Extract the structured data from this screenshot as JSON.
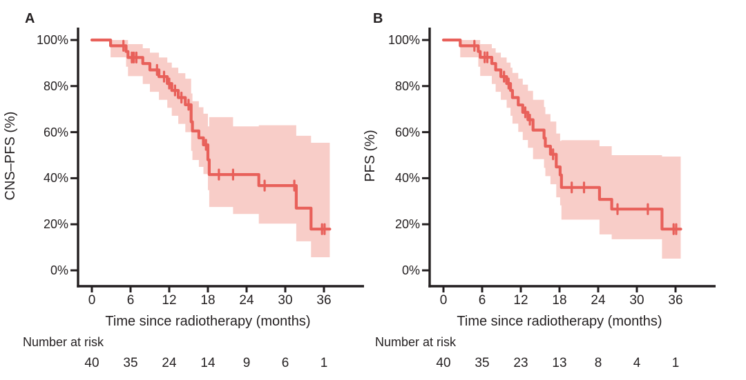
{
  "chart_data": [
    {
      "type": "line",
      "subtype": "kaplan_meier_step_with_ci_band",
      "panel_label": "A",
      "ylabel": "CNS–PFS (%)",
      "xlabel": "Time since radiotherapy (months)",
      "x_ticks": [
        0,
        6,
        12,
        18,
        24,
        30,
        36
      ],
      "y_ticks": [
        {
          "value": 100,
          "label": "100%"
        },
        {
          "value": 80,
          "label": "80%"
        },
        {
          "value": 60,
          "label": "60%"
        },
        {
          "value": 40,
          "label": "40%"
        },
        {
          "value": 20,
          "label": "20%"
        },
        {
          "value": 0,
          "label": "0%"
        }
      ],
      "xlim": [
        0,
        38
      ],
      "ylim": [
        0,
        100
      ],
      "grid": false,
      "legend": false,
      "line_color": "#e8605a",
      "band_color": "#f8cdc8",
      "axis_color": "#231f20",
      "end_time": 36.9,
      "steps": [
        {
          "t": 0,
          "s": 100,
          "u": 100,
          "l": 100
        },
        {
          "t": 2.9,
          "s": 97.5,
          "u": 100,
          "l": 92.5
        },
        {
          "t": 5.3,
          "s": 95.0,
          "u": 100,
          "l": 88.4
        },
        {
          "t": 5.6,
          "s": 92.4,
          "u": 98.2,
          "l": 84.3
        },
        {
          "t": 7.9,
          "s": 89.8,
          "u": 96.4,
          "l": 80.9
        },
        {
          "t": 9.0,
          "s": 87.0,
          "u": 94.5,
          "l": 77.5
        },
        {
          "t": 10.4,
          "s": 84.1,
          "u": 92.4,
          "l": 74.0
        },
        {
          "t": 11.7,
          "s": 81.1,
          "u": 90.2,
          "l": 70.6
        },
        {
          "t": 12.4,
          "s": 78.1,
          "u": 88.0,
          "l": 67.1
        },
        {
          "t": 13.4,
          "s": 75.0,
          "u": 85.6,
          "l": 63.6
        },
        {
          "t": 14.5,
          "s": 71.9,
          "u": 83.2,
          "l": 60.0
        },
        {
          "t": 15.4,
          "s": 64.5,
          "u": 76.8,
          "l": 51.9
        },
        {
          "t": 15.6,
          "s": 60.5,
          "u": 73.4,
          "l": 47.9
        },
        {
          "t": 16.6,
          "s": 57.5,
          "u": 70.8,
          "l": 44.9
        },
        {
          "t": 17.3,
          "s": 54.5,
          "u": 68.0,
          "l": 41.8
        },
        {
          "t": 18.0,
          "s": 48.0,
          "u": 62.5,
          "l": 34.8
        },
        {
          "t": 18.2,
          "s": 41.6,
          "u": 66.5,
          "l": 27.5
        },
        {
          "t": 21.9,
          "s": 41.6,
          "u": 62.5,
          "l": 24.5
        },
        {
          "t": 25.9,
          "s": 36.8,
          "u": 63.0,
          "l": 20.3
        },
        {
          "t": 31.7,
          "s": 27.0,
          "u": 58.4,
          "l": 12.6
        },
        {
          "t": 34.0,
          "s": 17.9,
          "u": 55.4,
          "l": 5.7
        }
      ],
      "censor_marks": [
        {
          "t": 4.9,
          "s": 97.5
        },
        {
          "t": 6.2,
          "s": 92.4
        },
        {
          "t": 6.5,
          "s": 92.4
        },
        {
          "t": 6.9,
          "s": 92.4
        },
        {
          "t": 10.1,
          "s": 87.0
        },
        {
          "t": 11.2,
          "s": 84.1
        },
        {
          "t": 12.0,
          "s": 81.1
        },
        {
          "t": 12.9,
          "s": 78.1
        },
        {
          "t": 13.9,
          "s": 75.0
        },
        {
          "t": 15.0,
          "s": 71.9
        },
        {
          "t": 17.7,
          "s": 54.5
        },
        {
          "t": 19.7,
          "s": 41.6
        },
        {
          "t": 21.9,
          "s": 41.6
        },
        {
          "t": 26.8,
          "s": 36.8
        },
        {
          "t": 31.4,
          "s": 36.8
        },
        {
          "t": 35.7,
          "s": 17.9
        },
        {
          "t": 36.1,
          "s": 17.9
        }
      ],
      "risk": {
        "label": "Number at risk",
        "times": [
          0,
          6,
          12,
          18,
          24,
          30,
          36
        ],
        "counts": [
          40,
          35,
          24,
          14,
          9,
          6,
          1
        ]
      }
    },
    {
      "type": "line",
      "subtype": "kaplan_meier_step_with_ci_band",
      "panel_label": "B",
      "ylabel": "PFS (%)",
      "xlabel": "Time since radiotherapy (months)",
      "x_ticks": [
        0,
        6,
        12,
        18,
        24,
        30,
        36
      ],
      "y_ticks": [
        {
          "value": 100,
          "label": "100%"
        },
        {
          "value": 80,
          "label": "80%"
        },
        {
          "value": 60,
          "label": "60%"
        },
        {
          "value": 40,
          "label": "40%"
        },
        {
          "value": 20,
          "label": "20%"
        },
        {
          "value": 0,
          "label": "0%"
        }
      ],
      "xlim": [
        0,
        38
      ],
      "ylim": [
        0,
        100
      ],
      "grid": false,
      "legend": false,
      "line_color": "#e8605a",
      "band_color": "#f8cdc8",
      "axis_color": "#231f20",
      "end_time": 36.8,
      "steps": [
        {
          "t": 0,
          "s": 100,
          "u": 100,
          "l": 100
        },
        {
          "t": 2.6,
          "s": 97.5,
          "u": 100,
          "l": 92.5
        },
        {
          "t": 5.4,
          "s": 95.0,
          "u": 100,
          "l": 88.4
        },
        {
          "t": 5.7,
          "s": 92.5,
          "u": 98.2,
          "l": 84.4
        },
        {
          "t": 7.5,
          "s": 89.8,
          "u": 96.4,
          "l": 80.9
        },
        {
          "t": 8.1,
          "s": 87.0,
          "u": 94.5,
          "l": 77.5
        },
        {
          "t": 8.9,
          "s": 84.1,
          "u": 92.4,
          "l": 74.0
        },
        {
          "t": 9.8,
          "s": 81.1,
          "u": 90.2,
          "l": 70.6
        },
        {
          "t": 10.4,
          "s": 78.1,
          "u": 88.0,
          "l": 67.1
        },
        {
          "t": 10.7,
          "s": 75.0,
          "u": 85.7,
          "l": 63.7
        },
        {
          "t": 11.6,
          "s": 71.8,
          "u": 83.2,
          "l": 60.1
        },
        {
          "t": 12.3,
          "s": 68.6,
          "u": 80.6,
          "l": 56.6
        },
        {
          "t": 13.1,
          "s": 65.4,
          "u": 77.9,
          "l": 53.2
        },
        {
          "t": 13.9,
          "s": 60.9,
          "u": 74.0,
          "l": 48.3
        },
        {
          "t": 15.6,
          "s": 57.4,
          "u": 70.9,
          "l": 44.5
        },
        {
          "t": 15.8,
          "s": 53.9,
          "u": 67.8,
          "l": 40.9
        },
        {
          "t": 16.6,
          "s": 50.4,
          "u": 64.6,
          "l": 37.4
        },
        {
          "t": 17.5,
          "s": 44.9,
          "u": 59.4,
          "l": 31.7
        },
        {
          "t": 18.1,
          "s": 41.4,
          "u": 56.2,
          "l": 28.2
        },
        {
          "t": 18.3,
          "s": 36.0,
          "u": 56.5,
          "l": 22.0
        },
        {
          "t": 24.2,
          "s": 30.8,
          "u": 53.9,
          "l": 15.6
        },
        {
          "t": 26.1,
          "s": 26.6,
          "u": 50.0,
          "l": 13.5
        },
        {
          "t": 33.9,
          "s": 17.9,
          "u": 49.4,
          "l": 5.1
        }
      ],
      "censor_marks": [
        {
          "t": 4.8,
          "s": 97.5
        },
        {
          "t": 6.4,
          "s": 92.5
        },
        {
          "t": 6.8,
          "s": 92.5
        },
        {
          "t": 9.4,
          "s": 84.1
        },
        {
          "t": 10.1,
          "s": 81.1
        },
        {
          "t": 12.7,
          "s": 68.6
        },
        {
          "t": 13.4,
          "s": 65.4
        },
        {
          "t": 17.0,
          "s": 50.4
        },
        {
          "t": 19.9,
          "s": 36.0
        },
        {
          "t": 21.8,
          "s": 36.0
        },
        {
          "t": 27.0,
          "s": 26.6
        },
        {
          "t": 31.7,
          "s": 26.6
        },
        {
          "t": 35.7,
          "s": 17.9
        },
        {
          "t": 36.1,
          "s": 17.9
        }
      ],
      "risk": {
        "label": "Number at risk",
        "times": [
          0,
          6,
          12,
          18,
          24,
          30,
          36
        ],
        "counts": [
          40,
          35,
          23,
          13,
          8,
          4,
          1
        ]
      }
    }
  ]
}
